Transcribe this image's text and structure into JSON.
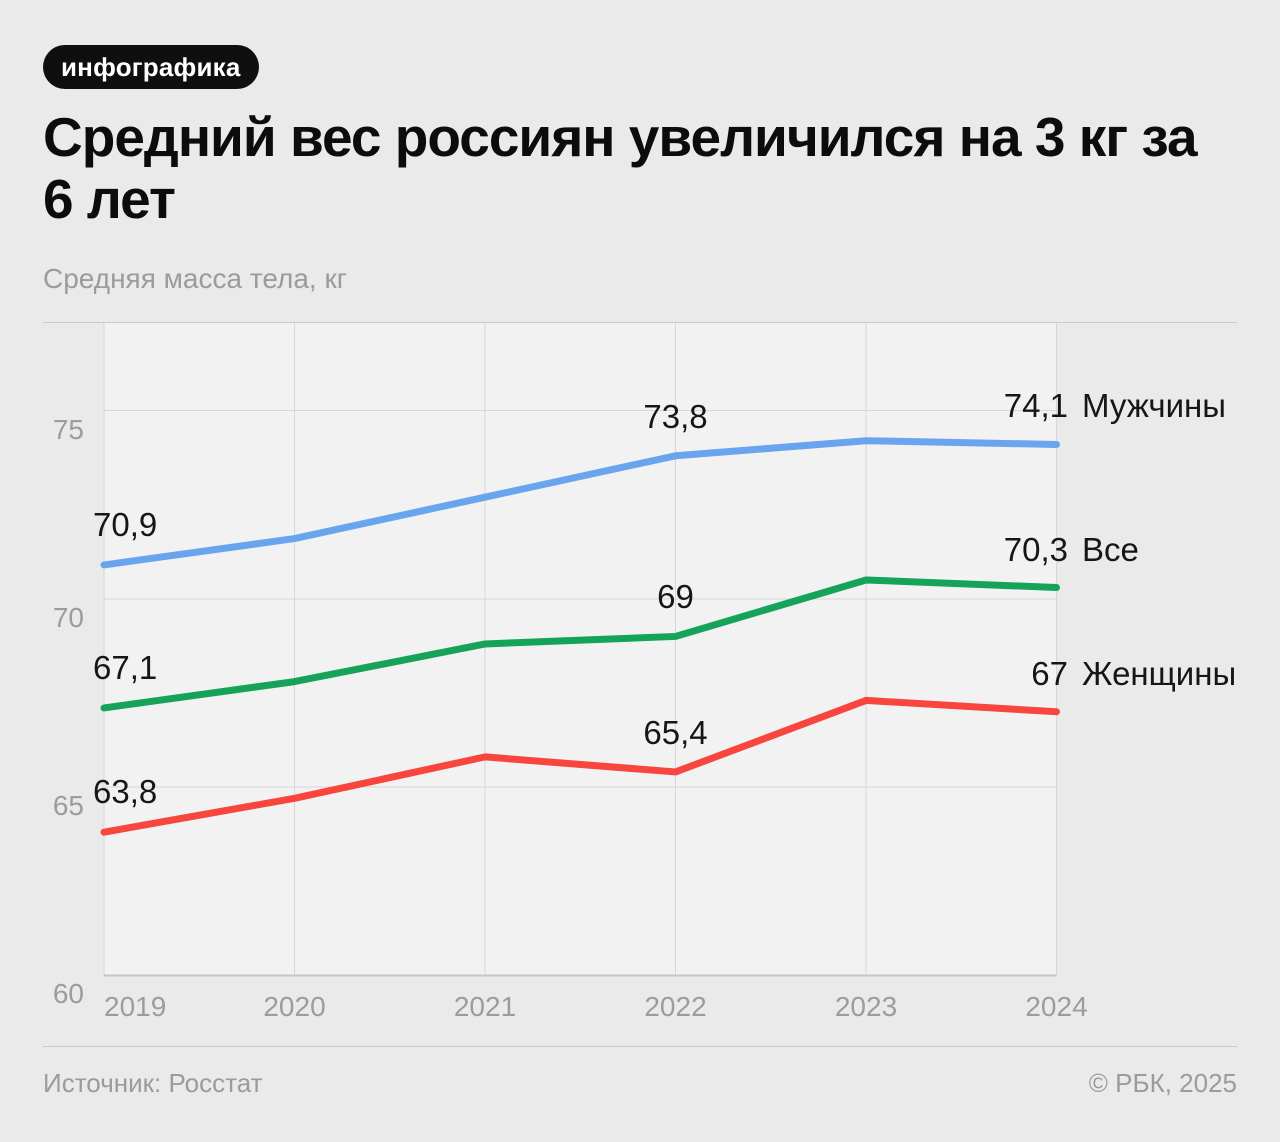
{
  "badge": {
    "label": "инфографика"
  },
  "title": {
    "text": "Средний вес россиян увеличился на 3 кг за 6 лет"
  },
  "subtitle": {
    "text": "Средняя масса тела, кг"
  },
  "footer": {
    "source": "Источник: Росстат",
    "copyright": "© РБК, 2025"
  },
  "colors": {
    "page_bg": "#EAEAEA",
    "plot_bg": "#F2F2F2",
    "gridline": "#D7D7D7",
    "top_border": "#CBCBCB",
    "axis": "#C5C5C5",
    "text_dark": "#161616",
    "text_gray": "#9C9C9C",
    "badge_bg": "#0F0F0F"
  },
  "chart_data": {
    "type": "line",
    "title": "Средний вес россиян увеличился на 3 кг за 6 лет",
    "ylabel": "Средняя масса тела, кг",
    "x": [
      "2019",
      "2020",
      "2021",
      "2022",
      "2023",
      "2024"
    ],
    "yticks": [
      "60",
      "65",
      "70",
      "75"
    ],
    "ytick_values": [
      60,
      65,
      70,
      75
    ],
    "ylim": [
      60,
      77.4
    ],
    "grid": true,
    "legend_position": "right",
    "series": [
      {
        "name": "Мужчины",
        "color": "#69A5EF",
        "values": [
          70.9,
          71.6,
          72.7,
          73.8,
          74.2,
          74.1
        ],
        "point_labels": [
          "70,9",
          "",
          "",
          "73,8",
          "",
          ""
        ],
        "end_label": "74,1"
      },
      {
        "name": "Все",
        "color": "#15A35A",
        "values": [
          67.1,
          67.8,
          68.8,
          69,
          70.5,
          70.3
        ],
        "point_labels": [
          "67,1",
          "",
          "",
          "69",
          "",
          ""
        ],
        "end_label": "70,3"
      },
      {
        "name": "Женщины",
        "color": "#F8463F",
        "values": [
          63.8,
          64.7,
          65.8,
          65.4,
          67.3,
          67
        ],
        "point_labels": [
          "63,8",
          "",
          "",
          "65,4",
          "",
          ""
        ],
        "end_label": "67"
      }
    ]
  }
}
